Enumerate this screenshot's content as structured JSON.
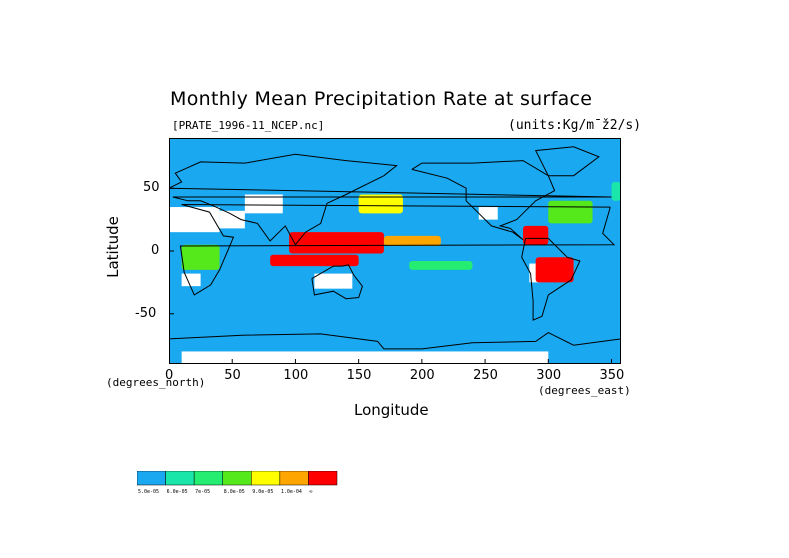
{
  "header": {
    "title": "Monthly Mean Precipitation Rate at surface",
    "file_label": "[PRATE_1996-11_NCEP.nc]",
    "units": "(units:Kg/m¯ž2/s)"
  },
  "chart_data": {
    "type": "heatmap",
    "title": "Monthly Mean Precipitation Rate at surface",
    "xlabel": "Longitude",
    "ylabel": "Latitude",
    "x_unit_note": "(degrees_east)",
    "y_unit_note": "(degrees_north)",
    "xlim": [
      0,
      357.5
    ],
    "ylim": [
      -90,
      90
    ],
    "x_ticks": [
      0,
      50,
      100,
      150,
      200,
      250,
      300,
      350
    ],
    "y_ticks": [
      50,
      0,
      -50
    ],
    "colorbar": {
      "colors": [
        "#1aa8f0",
        "#19e6a8",
        "#24ed72",
        "#55e81a",
        "#ffff00",
        "#ffa500",
        "#ff0000"
      ],
      "labels": [
        "5.0e-05",
        "6.0e-05",
        "7e-05",
        "8.0e-05",
        "9.0e-05",
        "1.0e-04",
        "∞"
      ]
    },
    "base_color": "#1aa8f0",
    "missing_color": "#ffffff",
    "rain_bands": [
      {
        "lon": [
          95,
          170
        ],
        "lat": [
          -2,
          15
        ],
        "color": "#ff0000"
      },
      {
        "lon": [
          80,
          150
        ],
        "lat": [
          -12,
          -3
        ],
        "color": "#ff0000"
      },
      {
        "lon": [
          170,
          215
        ],
        "lat": [
          4,
          12
        ],
        "color": "#ffa500"
      },
      {
        "lon": [
          280,
          300
        ],
        "lat": [
          5,
          20
        ],
        "color": "#ff0000"
      },
      {
        "lon": [
          290,
          320
        ],
        "lat": [
          -25,
          -5
        ],
        "color": "#ff0000"
      },
      {
        "lon": [
          150,
          185
        ],
        "lat": [
          30,
          45
        ],
        "color": "#ffff00"
      },
      {
        "lon": [
          300,
          335
        ],
        "lat": [
          22,
          40
        ],
        "color": "#55e81a"
      },
      {
        "lon": [
          10,
          40
        ],
        "lat": [
          -15,
          5
        ],
        "color": "#55e81a"
      },
      {
        "lon": [
          190,
          240
        ],
        "lat": [
          -15,
          -8
        ],
        "color": "#24ed72"
      },
      {
        "lon": [
          350,
          357.5
        ],
        "lat": [
          40,
          55
        ],
        "color": "#19e6a8"
      }
    ],
    "dry_regions": [
      {
        "lon": [
          0,
          40
        ],
        "lat": [
          15,
          35
        ]
      },
      {
        "lon": [
          40,
          60
        ],
        "lat": [
          18,
          32
        ]
      },
      {
        "lon": [
          60,
          90
        ],
        "lat": [
          30,
          45
        ]
      },
      {
        "lon": [
          115,
          145
        ],
        "lat": [
          -30,
          -18
        ]
      },
      {
        "lon": [
          10,
          25
        ],
        "lat": [
          -28,
          -18
        ]
      },
      {
        "lon": [
          285,
          295
        ],
        "lat": [
          -25,
          -10
        ]
      },
      {
        "lon": [
          245,
          260
        ],
        "lat": [
          25,
          35
        ]
      },
      {
        "lon": [
          10,
          300
        ],
        "lat": [
          -90,
          -80
        ]
      }
    ],
    "coastlines": [
      {
        "name": "africa",
        "points": [
          [
            349,
            35
          ],
          [
            10,
            37
          ],
          [
            32,
            31
          ],
          [
            43,
            12
          ],
          [
            51,
            11
          ],
          [
            40,
            -15
          ],
          [
            33,
            -27
          ],
          [
            20,
            -35
          ],
          [
            12,
            -17
          ],
          [
            9,
            4
          ],
          [
            352,
            5
          ],
          [
            343,
            14
          ],
          [
            349,
            35
          ]
        ]
      },
      {
        "name": "eurasia",
        "points": [
          [
            350,
            43
          ],
          [
            0,
            50
          ],
          [
            10,
            55
          ],
          [
            5,
            62
          ],
          [
            25,
            71
          ],
          [
            60,
            70
          ],
          [
            100,
            77
          ],
          [
            140,
            72
          ],
          [
            180,
            68
          ],
          [
            170,
            60
          ],
          [
            160,
            55
          ],
          [
            140,
            45
          ],
          [
            125,
            38
          ],
          [
            120,
            22
          ],
          [
            108,
            15
          ],
          [
            100,
            5
          ],
          [
            92,
            20
          ],
          [
            80,
            8
          ],
          [
            70,
            22
          ],
          [
            57,
            25
          ],
          [
            48,
            30
          ],
          [
            35,
            36
          ],
          [
            25,
            40
          ],
          [
            15,
            40
          ],
          [
            3,
            43
          ],
          [
            350,
            43
          ]
        ]
      },
      {
        "name": "n-america",
        "points": [
          [
            192,
            65
          ],
          [
            200,
            70
          ],
          [
            240,
            70
          ],
          [
            280,
            72
          ],
          [
            300,
            60
          ],
          [
            305,
            48
          ],
          [
            290,
            40
          ],
          [
            280,
            30
          ],
          [
            275,
            25
          ],
          [
            262,
            20
          ],
          [
            270,
            18
          ],
          [
            280,
            9
          ],
          [
            272,
            15
          ],
          [
            255,
            20
          ],
          [
            245,
            30
          ],
          [
            235,
            40
          ],
          [
            235,
            50
          ],
          [
            220,
            58
          ],
          [
            192,
            65
          ]
        ]
      },
      {
        "name": "s-america",
        "points": [
          [
            282,
            10
          ],
          [
            300,
            10
          ],
          [
            315,
            -5
          ],
          [
            325,
            -8
          ],
          [
            318,
            -23
          ],
          [
            300,
            -35
          ],
          [
            295,
            -52
          ],
          [
            288,
            -55
          ],
          [
            288,
            -40
          ],
          [
            286,
            -18
          ],
          [
            279,
            -5
          ],
          [
            282,
            10
          ]
        ]
      },
      {
        "name": "australia",
        "points": [
          [
            113,
            -22
          ],
          [
            130,
            -12
          ],
          [
            137,
            -12
          ],
          [
            142,
            -11
          ],
          [
            146,
            -19
          ],
          [
            153,
            -28
          ],
          [
            150,
            -37
          ],
          [
            140,
            -38
          ],
          [
            130,
            -32
          ],
          [
            115,
            -35
          ],
          [
            113,
            -22
          ]
        ]
      },
      {
        "name": "greenland",
        "points": [
          [
            300,
            60
          ],
          [
            320,
            60
          ],
          [
            340,
            75
          ],
          [
            320,
            83
          ],
          [
            290,
            80
          ],
          [
            300,
            60
          ]
        ]
      },
      {
        "name": "antarctica",
        "points": [
          [
            0,
            -70
          ],
          [
            60,
            -67
          ],
          [
            120,
            -66
          ],
          [
            165,
            -72
          ],
          [
            170,
            -78
          ],
          [
            200,
            -78
          ],
          [
            240,
            -73
          ],
          [
            290,
            -72
          ],
          [
            300,
            -65
          ],
          [
            320,
            -75
          ],
          [
            357.5,
            -70
          ]
        ]
      }
    ]
  }
}
